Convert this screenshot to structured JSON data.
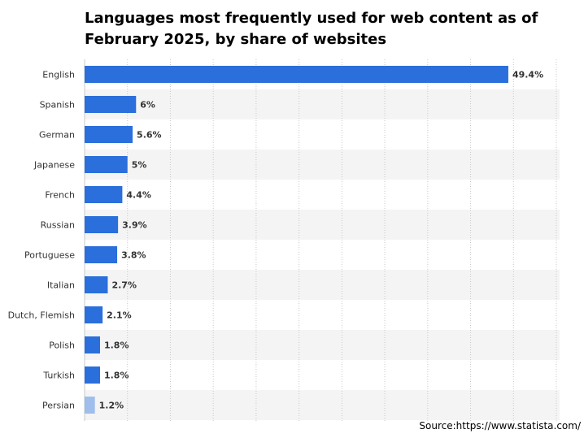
{
  "title": "Languages most frequently used for web content as of February 2025, by share of websites",
  "source": "Source:https://www.statista.com/",
  "colors": {
    "bar": "#2a6fdb",
    "faded_bar": "#8fb4ea",
    "stripe": "#f4f4f4",
    "grid": "#c8c8c8"
  },
  "chart_data": {
    "type": "bar",
    "orientation": "horizontal",
    "title": "Languages most frequently used for web content as of February 2025, by share of websites",
    "categories": [
      "English",
      "Spanish",
      "German",
      "Japanese",
      "French",
      "Russian",
      "Portuguese",
      "Italian",
      "Dutch, Flemish",
      "Polish",
      "Turkish",
      "Persian"
    ],
    "values": [
      49.4,
      6,
      5.6,
      5,
      4.4,
      3.9,
      3.8,
      2.7,
      2.1,
      1.8,
      1.8,
      1.2
    ],
    "value_labels": [
      "49.4%",
      "6%",
      "5.6%",
      "5%",
      "4.4%",
      "3.9%",
      "3.8%",
      "2.7%",
      "2.1%",
      "1.8%",
      "1.8%",
      "1.2%"
    ],
    "xlim": [
      0,
      55
    ],
    "grid": true,
    "faded_last_row": true
  }
}
